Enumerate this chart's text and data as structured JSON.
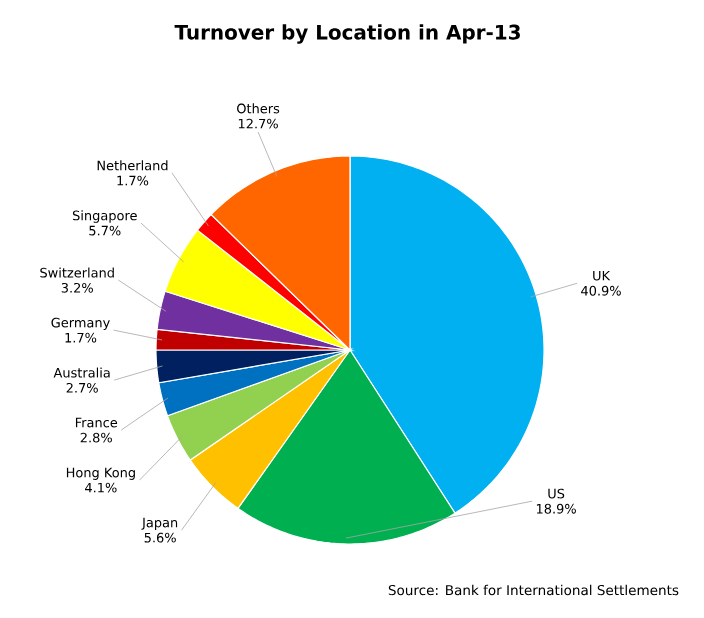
{
  "chart_data": {
    "type": "pie",
    "title": "Turnover by Location in Apr-13",
    "categories": [
      "UK",
      "US",
      "Japan",
      "Hong Kong",
      "France",
      "Australia",
      "Germany",
      "Switzerland",
      "Singapore",
      "Netherland",
      "Others"
    ],
    "values": [
      40.9,
      18.9,
      5.6,
      4.1,
      2.8,
      2.7,
      1.7,
      3.2,
      5.7,
      1.7,
      12.7
    ],
    "value_labels": [
      "40.9%",
      "18.9%",
      "5.6%",
      "4.1%",
      "2.8%",
      "2.7%",
      "1.7%",
      "3.2%",
      "5.7%",
      "1.7%",
      "12.7%"
    ],
    "colors": [
      "#00b0f0",
      "#00b050",
      "#ffc000",
      "#92d050",
      "#0070c0",
      "#002060",
      "#c00000",
      "#7030a0",
      "#ffff00",
      "#ff0000",
      "#ff6600"
    ],
    "annotations": [
      "Source: Bank for International Settlements"
    ]
  }
}
